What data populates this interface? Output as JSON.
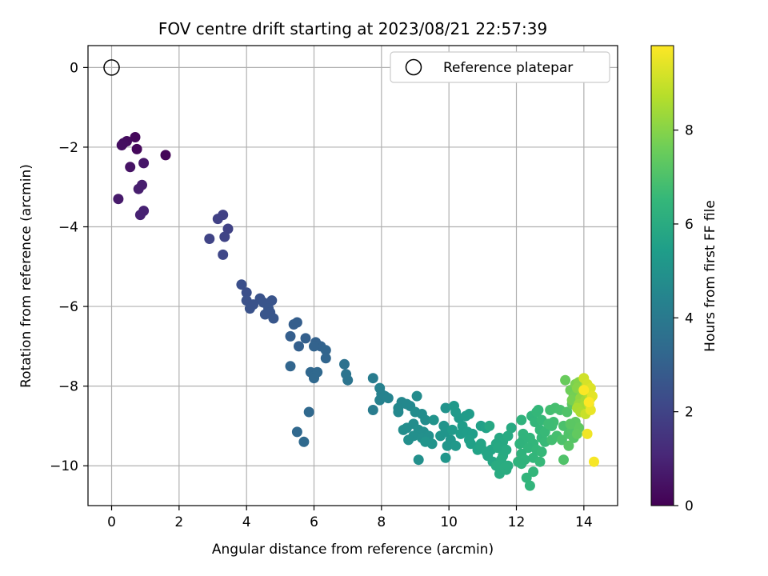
{
  "chart_data": {
    "type": "scatter",
    "title": "FOV centre drift starting at 2023/08/21 22:57:39",
    "xlabel": "Angular distance from reference (arcmin)",
    "ylabel": "Rotation from reference (arcmin)",
    "xlim": [
      -0.7,
      15.0
    ],
    "ylim": [
      -11.0,
      0.55
    ],
    "xticks": [
      0,
      2,
      4,
      6,
      8,
      10,
      12,
      14
    ],
    "yticks": [
      0,
      -2,
      -4,
      -6,
      -8,
      -10
    ],
    "grid": true,
    "legend": {
      "location": "top-right",
      "entries": [
        "Reference platepar"
      ]
    },
    "reference": {
      "x": 0,
      "y": 0,
      "label": "Reference platepar"
    },
    "colorbar": {
      "label": "Hours from first FF file",
      "range": [
        0,
        9.8
      ],
      "ticks": [
        0,
        2,
        4,
        6,
        8
      ],
      "colormap": "viridis"
    },
    "points_columns": [
      "x",
      "y",
      "hours"
    ],
    "points": [
      [
        0.7,
        -1.75,
        0.2
      ],
      [
        0.45,
        -1.85,
        0.3
      ],
      [
        0.35,
        -1.9,
        0.35
      ],
      [
        0.3,
        -1.95,
        0.4
      ],
      [
        0.75,
        -2.05,
        0.2
      ],
      [
        1.6,
        -2.2,
        0.1
      ],
      [
        0.95,
        -2.4,
        0.6
      ],
      [
        0.55,
        -2.5,
        0.5
      ],
      [
        0.2,
        -3.3,
        0.7
      ],
      [
        0.9,
        -2.95,
        0.8
      ],
      [
        0.8,
        -3.05,
        0.8
      ],
      [
        0.95,
        -3.6,
        0.9
      ],
      [
        0.85,
        -3.7,
        0.9
      ],
      [
        3.3,
        -3.7,
        1.9
      ],
      [
        3.15,
        -3.8,
        1.9
      ],
      [
        3.45,
        -4.05,
        1.95
      ],
      [
        3.35,
        -4.25,
        2.0
      ],
      [
        2.9,
        -4.3,
        2.0
      ],
      [
        3.3,
        -4.7,
        2.1
      ],
      [
        3.85,
        -5.45,
        2.4
      ],
      [
        4.0,
        -5.65,
        2.4
      ],
      [
        4.0,
        -5.85,
        2.45
      ],
      [
        4.4,
        -5.8,
        2.5
      ],
      [
        4.5,
        -5.9,
        2.55
      ],
      [
        4.75,
        -5.85,
        2.55
      ],
      [
        4.2,
        -5.95,
        2.5
      ],
      [
        4.1,
        -6.05,
        2.5
      ],
      [
        4.65,
        -6.05,
        2.6
      ],
      [
        4.7,
        -6.15,
        2.6
      ],
      [
        4.55,
        -6.2,
        2.6
      ],
      [
        4.8,
        -6.3,
        2.65
      ],
      [
        5.5,
        -6.4,
        2.9
      ],
      [
        5.4,
        -6.45,
        2.9
      ],
      [
        5.3,
        -6.75,
        2.95
      ],
      [
        5.75,
        -6.8,
        3.0
      ],
      [
        6.05,
        -6.9,
        3.05
      ],
      [
        5.55,
        -7.0,
        3.0
      ],
      [
        6.2,
        -7.0,
        3.1
      ],
      [
        6.0,
        -7.0,
        3.1
      ],
      [
        6.35,
        -7.1,
        3.15
      ],
      [
        6.35,
        -7.3,
        3.2
      ],
      [
        5.3,
        -7.5,
        3.2
      ],
      [
        5.9,
        -7.65,
        3.25
      ],
      [
        6.1,
        -7.65,
        3.3
      ],
      [
        6.0,
        -7.75,
        3.3
      ],
      [
        6.0,
        -7.8,
        3.3
      ],
      [
        5.85,
        -8.65,
        3.3
      ],
      [
        5.5,
        -9.15,
        3.3
      ],
      [
        5.7,
        -9.4,
        3.35
      ],
      [
        6.9,
        -7.45,
        3.7
      ],
      [
        6.95,
        -7.7,
        3.75
      ],
      [
        7.0,
        -7.85,
        3.75
      ],
      [
        7.75,
        -7.8,
        4.1
      ],
      [
        7.75,
        -8.6,
        4.1
      ],
      [
        7.95,
        -8.05,
        4.3
      ],
      [
        8.0,
        -8.2,
        4.3
      ],
      [
        7.95,
        -8.35,
        4.3
      ],
      [
        8.1,
        -8.25,
        4.35
      ],
      [
        8.2,
        -8.3,
        4.4
      ],
      [
        8.6,
        -8.4,
        4.55
      ],
      [
        8.75,
        -8.45,
        4.6
      ],
      [
        8.85,
        -8.5,
        4.6
      ],
      [
        8.5,
        -8.55,
        4.6
      ],
      [
        8.5,
        -8.65,
        4.6
      ],
      [
        9.05,
        -8.25,
        4.7
      ],
      [
        9.2,
        -8.7,
        4.75
      ],
      [
        9.0,
        -8.65,
        4.75
      ],
      [
        9.3,
        -8.85,
        4.8
      ],
      [
        8.95,
        -8.95,
        4.8
      ],
      [
        8.75,
        -9.05,
        4.8
      ],
      [
        8.65,
        -9.1,
        4.8
      ],
      [
        9.1,
        -9.1,
        4.85
      ],
      [
        9.25,
        -9.15,
        4.85
      ],
      [
        8.95,
        -9.25,
        4.85
      ],
      [
        8.8,
        -9.35,
        4.85
      ],
      [
        9.2,
        -9.3,
        4.9
      ],
      [
        9.4,
        -9.25,
        4.9
      ],
      [
        9.1,
        -9.85,
        4.9
      ],
      [
        9.9,
        -8.55,
        5.0
      ],
      [
        9.55,
        -8.85,
        5.0
      ],
      [
        9.85,
        -9.0,
        5.05
      ],
      [
        9.5,
        -9.45,
        5.05
      ],
      [
        9.3,
        -9.4,
        5.05
      ],
      [
        9.75,
        -9.25,
        5.1
      ],
      [
        9.9,
        -9.15,
        5.1
      ],
      [
        10.05,
        -9.35,
        5.15
      ],
      [
        9.95,
        -9.5,
        5.15
      ],
      [
        10.2,
        -9.5,
        5.2
      ],
      [
        9.9,
        -9.8,
        5.15
      ],
      [
        10.15,
        -8.5,
        5.25
      ],
      [
        10.2,
        -8.65,
        5.3
      ],
      [
        10.3,
        -8.8,
        5.3
      ],
      [
        10.5,
        -8.75,
        5.35
      ],
      [
        10.6,
        -8.7,
        5.35
      ],
      [
        10.4,
        -9.0,
        5.4
      ],
      [
        10.1,
        -9.1,
        5.3
      ],
      [
        10.35,
        -9.2,
        5.4
      ],
      [
        10.55,
        -9.15,
        5.45
      ],
      [
        10.7,
        -9.2,
        5.45
      ],
      [
        10.6,
        -9.35,
        5.5
      ],
      [
        10.95,
        -9.0,
        5.55
      ],
      [
        11.1,
        -9.05,
        5.6
      ],
      [
        10.65,
        -9.45,
        5.55
      ],
      [
        10.95,
        -9.45,
        5.65
      ],
      [
        10.85,
        -9.6,
        5.65
      ],
      [
        10.95,
        -9.5,
        5.7
      ],
      [
        11.25,
        -9.6,
        5.75
      ],
      [
        11.1,
        -9.65,
        5.75
      ],
      [
        11.15,
        -9.75,
        5.75
      ],
      [
        11.3,
        -9.9,
        5.8
      ],
      [
        11.5,
        -9.3,
        5.85
      ],
      [
        11.6,
        -9.4,
        5.9
      ],
      [
        11.4,
        -9.45,
        5.85
      ],
      [
        11.2,
        -9.0,
        5.85
      ],
      [
        11.45,
        -9.55,
        5.9
      ],
      [
        11.7,
        -9.6,
        5.95
      ],
      [
        11.6,
        -9.75,
        5.95
      ],
      [
        11.75,
        -9.25,
        5.95
      ],
      [
        11.85,
        -9.05,
        5.95
      ],
      [
        11.55,
        -9.85,
        6.0
      ],
      [
        11.4,
        -10.0,
        6.0
      ],
      [
        11.5,
        -10.2,
        6.0
      ],
      [
        11.7,
        -10.1,
        6.0
      ],
      [
        11.65,
        -10.05,
        6.05
      ],
      [
        11.75,
        -10.0,
        6.05
      ],
      [
        12.15,
        -8.85,
        6.3
      ],
      [
        12.45,
        -8.75,
        6.4
      ],
      [
        12.6,
        -8.65,
        6.5
      ],
      [
        12.55,
        -8.9,
        6.45
      ],
      [
        12.75,
        -8.85,
        6.55
      ],
      [
        12.7,
        -9.1,
        6.5
      ],
      [
        12.2,
        -9.2,
        6.35
      ],
      [
        12.4,
        -9.3,
        6.4
      ],
      [
        12.2,
        -9.35,
        6.35
      ],
      [
        12.1,
        -9.45,
        6.3
      ],
      [
        12.5,
        -9.45,
        6.45
      ],
      [
        12.75,
        -9.3,
        6.55
      ],
      [
        12.85,
        -9.4,
        6.6
      ],
      [
        12.35,
        -9.55,
        6.4
      ],
      [
        12.6,
        -9.6,
        6.5
      ],
      [
        12.75,
        -9.65,
        6.55
      ],
      [
        12.15,
        -9.7,
        6.3
      ],
      [
        12.5,
        -9.8,
        6.45
      ],
      [
        12.25,
        -9.85,
        6.35
      ],
      [
        12.05,
        -9.9,
        6.3
      ],
      [
        12.15,
        -9.95,
        6.3
      ],
      [
        12.7,
        -9.9,
        6.55
      ],
      [
        12.5,
        -10.15,
        6.45
      ],
      [
        12.3,
        -10.3,
        6.4
      ],
      [
        12.4,
        -10.5,
        6.4
      ],
      [
        12.65,
        -8.6,
        6.5
      ],
      [
        12.85,
        -9.15,
        6.6
      ],
      [
        13.05,
        -9.0,
        6.7
      ],
      [
        13.1,
        -8.9,
        6.75
      ],
      [
        12.95,
        -8.95,
        6.7
      ],
      [
        13.0,
        -8.6,
        6.8
      ],
      [
        13.15,
        -8.55,
        6.85
      ],
      [
        13.3,
        -8.6,
        6.9
      ],
      [
        13.05,
        -9.35,
        6.8
      ],
      [
        13.2,
        -9.25,
        6.85
      ],
      [
        13.4,
        -9.0,
        6.95
      ],
      [
        13.5,
        -8.65,
        7.05
      ],
      [
        13.35,
        -9.35,
        7.0
      ],
      [
        13.55,
        -9.2,
        7.05
      ],
      [
        13.65,
        -9.1,
        7.1
      ],
      [
        13.4,
        -9.85,
        7.05
      ],
      [
        13.7,
        -9.3,
        7.15
      ],
      [
        13.65,
        -8.45,
        7.3
      ],
      [
        13.75,
        -8.9,
        7.3
      ],
      [
        13.85,
        -9.05,
        7.35
      ],
      [
        13.6,
        -8.95,
        7.25
      ],
      [
        13.8,
        -9.2,
        7.4
      ],
      [
        13.55,
        -9.5,
        7.2
      ],
      [
        13.45,
        -7.85,
        7.5
      ],
      [
        13.6,
        -8.1,
        7.6
      ],
      [
        13.7,
        -8.25,
        7.7
      ],
      [
        13.75,
        -7.95,
        7.8
      ],
      [
        13.65,
        -8.35,
        7.75
      ],
      [
        13.85,
        -7.9,
        7.95
      ],
      [
        13.8,
        -8.05,
        8.0
      ],
      [
        13.95,
        -8.1,
        8.1
      ],
      [
        13.9,
        -8.3,
        8.2
      ],
      [
        14.05,
        -8.0,
        8.3
      ],
      [
        13.85,
        -8.45,
        8.3
      ],
      [
        14.05,
        -8.35,
        8.45
      ],
      [
        14.0,
        -8.5,
        8.5
      ],
      [
        13.8,
        -8.55,
        8.55
      ],
      [
        13.9,
        -8.65,
        8.6
      ],
      [
        14.1,
        -8.15,
        8.7
      ],
      [
        14.2,
        -8.3,
        8.8
      ],
      [
        14.15,
        -8.45,
        8.9
      ],
      [
        14.05,
        -8.7,
        9.0
      ],
      [
        14.0,
        -7.8,
        9.1
      ],
      [
        14.1,
        -7.95,
        9.2
      ],
      [
        14.2,
        -8.05,
        9.3
      ],
      [
        14.25,
        -8.25,
        9.4
      ],
      [
        14.2,
        -8.6,
        9.5
      ],
      [
        14.1,
        -9.2,
        9.6
      ],
      [
        14.3,
        -9.9,
        9.7
      ],
      [
        14.0,
        -8.1,
        9.75
      ],
      [
        14.15,
        -8.4,
        9.8
      ]
    ]
  }
}
